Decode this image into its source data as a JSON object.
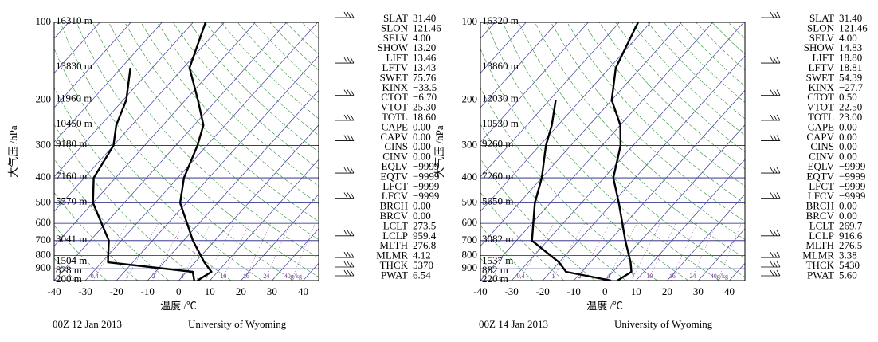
{
  "chart_data": [
    {
      "type": "skew-t",
      "xlabel": "温度 /℃",
      "ylabel": "大气压 /hPa",
      "xlim": [
        -40,
        45
      ],
      "xticks": [
        -40,
        -30,
        -20,
        -10,
        0,
        10,
        20,
        30,
        40
      ],
      "ylim": [
        1000,
        100
      ],
      "yticks": [
        100,
        200,
        300,
        400,
        500,
        600,
        700,
        800,
        900
      ],
      "ylog": true,
      "pressure": [
        1000,
        925,
        850,
        700,
        500,
        400,
        300,
        250,
        200,
        150,
        100
      ],
      "heights": [
        "200 m",
        "828 m",
        "1504 m",
        "3041 m",
        "5570 m",
        "7160 m",
        "9180 m",
        "10450 m",
        "11960 m",
        "13830 m",
        "16310 m"
      ],
      "series": [
        {
          "color": "#000000",
          "values": [
            6,
            8,
            3,
            -7,
            -22,
            -28,
            -33,
            -37,
            -46,
            -58,
            -66
          ]
        },
        {
          "color": "#000000",
          "values": [
            5,
            2,
            -28,
            -34,
            -50,
            -57,
            -60,
            -65,
            -69,
            -77,
            null
          ]
        }
      ],
      "mixing_ratio_labels": [
        "0.4",
        "1",
        "2",
        "4",
        "7",
        "10",
        "16",
        "24",
        "40g/kg"
      ],
      "indices": [
        {
          "name": "SLAT",
          "value": "31.40"
        },
        {
          "name": "SLON",
          "value": "121.46"
        },
        {
          "name": "SELV",
          "value": "4.00"
        },
        {
          "name": "SHOW",
          "value": "13.20"
        },
        {
          "name": "LIFT",
          "value": "13.46"
        },
        {
          "name": "LFTV",
          "value": "13.43"
        },
        {
          "name": "SWET",
          "value": "75.76"
        },
        {
          "name": "KINX",
          "value": "−33.5"
        },
        {
          "name": "CTOT",
          "value": "−6.70"
        },
        {
          "name": "VTOT",
          "value": "25.30"
        },
        {
          "name": "TOTL",
          "value": "18.60"
        },
        {
          "name": "CAPE",
          "value": "0.00"
        },
        {
          "name": "CAPV",
          "value": "0.00"
        },
        {
          "name": "CINS",
          "value": "0.00"
        },
        {
          "name": "CINV",
          "value": "0.00"
        },
        {
          "name": "EQLV",
          "value": "−9999"
        },
        {
          "name": "EQTV",
          "value": "−9999"
        },
        {
          "name": "LFCT",
          "value": "−9999"
        },
        {
          "name": "LFCV",
          "value": "−9999"
        },
        {
          "name": "BRCH",
          "value": "0.00"
        },
        {
          "name": "BRCV",
          "value": "0.00"
        },
        {
          "name": "LCLT",
          "value": "273.5"
        },
        {
          "name": "LCLP",
          "value": "959.4"
        },
        {
          "name": "MLTH",
          "value": "276.8"
        },
        {
          "name": "MLMR",
          "value": "4.12"
        },
        {
          "name": "THCK",
          "value": "5370"
        },
        {
          "name": "PWAT",
          "value": "6.54"
        }
      ],
      "footer_left": "00Z 12 Jan 2013",
      "footer_right": "University of Wyoming"
    },
    {
      "type": "skew-t",
      "xlabel": "温度 /℃",
      "ylabel": "大气压 /hPa",
      "xlim": [
        -40,
        45
      ],
      "xticks": [
        -40,
        -30,
        -20,
        -10,
        0,
        10,
        20,
        30,
        40
      ],
      "ylim": [
        1000,
        100
      ],
      "yticks": [
        100,
        200,
        300,
        400,
        500,
        600,
        700,
        800,
        900
      ],
      "ylog": true,
      "pressure": [
        1000,
        925,
        850,
        700,
        500,
        400,
        300,
        250,
        200,
        150,
        100
      ],
      "heights": [
        "220 m",
        "882 m",
        "1537 m",
        "3082 m",
        "5650 m",
        "7260 m",
        "9260 m",
        "10530 m",
        "12030 m",
        "13860 m",
        "16320 m"
      ],
      "series": [
        {
          "color": "#000000",
          "values": [
            4,
            6,
            3,
            -5,
            -18,
            -27,
            -34,
            -40,
            -50,
            -58,
            -64
          ]
        },
        {
          "color": "#000000",
          "values": [
            2,
            -15,
            -20,
            -35,
            -45,
            -50,
            -58,
            -62,
            -68,
            null,
            null
          ]
        }
      ],
      "mixing_ratio_labels": [
        "0.4",
        "1",
        "2",
        "4",
        "7",
        "10",
        "16",
        "24",
        "40g/kg"
      ],
      "indices": [
        {
          "name": "SLAT",
          "value": "31.40"
        },
        {
          "name": "SLON",
          "value": "121.46"
        },
        {
          "name": "SELV",
          "value": "4.00"
        },
        {
          "name": "SHOW",
          "value": "14.83"
        },
        {
          "name": "LIFT",
          "value": "18.80"
        },
        {
          "name": "LFTV",
          "value": "18.81"
        },
        {
          "name": "SWET",
          "value": "54.39"
        },
        {
          "name": "KINX",
          "value": "−27.7"
        },
        {
          "name": "CTOT",
          "value": "0.50"
        },
        {
          "name": "VTOT",
          "value": "22.50"
        },
        {
          "name": "TOTL",
          "value": "23.00"
        },
        {
          "name": "CAPE",
          "value": "0.00"
        },
        {
          "name": "CAPV",
          "value": "0.00"
        },
        {
          "name": "CINS",
          "value": "0.00"
        },
        {
          "name": "CINV",
          "value": "0.00"
        },
        {
          "name": "EQLV",
          "value": "−9999"
        },
        {
          "name": "EQTV",
          "value": "−9999"
        },
        {
          "name": "LFCT",
          "value": "−9999"
        },
        {
          "name": "LFCV",
          "value": "−9999"
        },
        {
          "name": "BRCH",
          "value": "0.00"
        },
        {
          "name": "BRCV",
          "value": "0.00"
        },
        {
          "name": "LCLT",
          "value": "269.7"
        },
        {
          "name": "LCLP",
          "value": "916.6"
        },
        {
          "name": "MLTH",
          "value": "276.5"
        },
        {
          "name": "MLMR",
          "value": "3.38"
        },
        {
          "name": "THCK",
          "value": "5430"
        },
        {
          "name": "PWAT",
          "value": "5.60"
        }
      ],
      "footer_left": "00Z 14 Jan 2013",
      "footer_right": "University of Wyoming"
    }
  ]
}
